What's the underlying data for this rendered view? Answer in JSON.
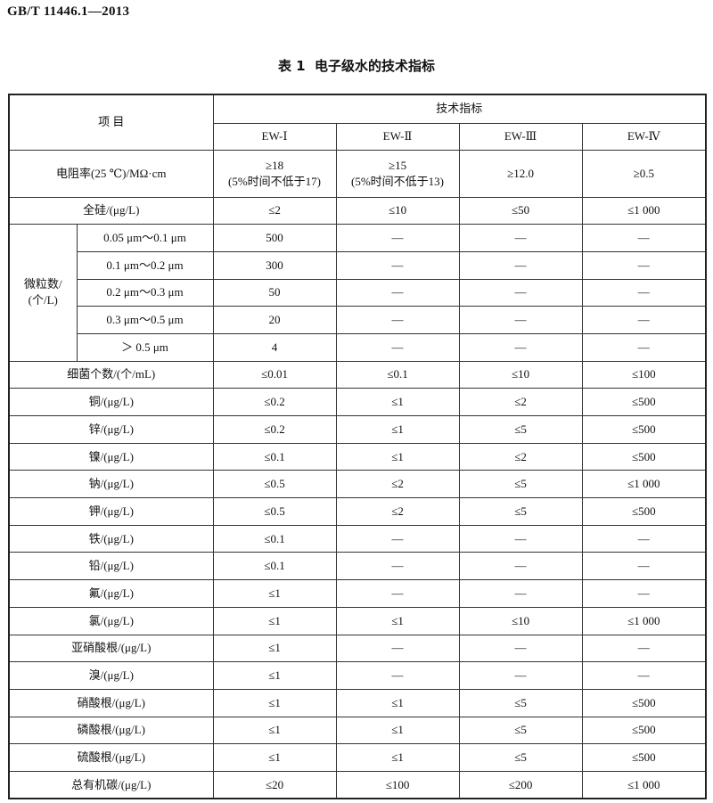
{
  "header": {
    "code": "GB/T 11446.1—2013"
  },
  "table": {
    "title": "表 1  电子级水的技术指标",
    "columns": {
      "item": "项 目",
      "group": "技术指标",
      "grades": [
        "EW-Ⅰ",
        "EW-Ⅱ",
        "EW-Ⅲ",
        "EW-Ⅳ"
      ]
    },
    "resistivity": {
      "item": "电阻率(25 ℃)/MΩ·cm",
      "values": [
        [
          "≥18",
          "(5%时间不低于17)"
        ],
        [
          "≥15",
          "(5%时间不低于13)"
        ],
        [
          "≥12.0"
        ],
        [
          "≥0.5"
        ]
      ]
    },
    "silicon": {
      "item": "全硅/(μg/L)",
      "values": [
        "≤2",
        "≤10",
        "≤50",
        "≤1 000"
      ]
    },
    "particles": {
      "group": [
        "微粒数/",
        "(个/L)"
      ],
      "rows": [
        {
          "item": "0.05 μm～0.1 μm",
          "values": [
            "500",
            "—",
            "—",
            "—"
          ]
        },
        {
          "item": "0.1 μm～0.2 μm",
          "values": [
            "300",
            "—",
            "—",
            "—"
          ]
        },
        {
          "item": "0.2 μm～0.3 μm",
          "values": [
            "50",
            "—",
            "—",
            "—"
          ]
        },
        {
          "item": "0.3 μm～0.5 μm",
          "values": [
            "20",
            "—",
            "—",
            "—"
          ]
        },
        {
          "item": "＞ 0.5 μm",
          "values": [
            "4",
            "—",
            "—",
            "—"
          ]
        }
      ]
    },
    "rows": [
      {
        "item": "细菌个数/(个/mL)",
        "values": [
          "≤0.01",
          "≤0.1",
          "≤10",
          "≤100"
        ]
      },
      {
        "item": "铜/(μg/L)",
        "values": [
          "≤0.2",
          "≤1",
          "≤2",
          "≤500"
        ]
      },
      {
        "item": "锌/(μg/L)",
        "values": [
          "≤0.2",
          "≤1",
          "≤5",
          "≤500"
        ]
      },
      {
        "item": "镍/(μg/L)",
        "values": [
          "≤0.1",
          "≤1",
          "≤2",
          "≤500"
        ]
      },
      {
        "item": "钠/(μg/L)",
        "values": [
          "≤0.5",
          "≤2",
          "≤5",
          "≤1 000"
        ]
      },
      {
        "item": "钾/(μg/L)",
        "values": [
          "≤0.5",
          "≤2",
          "≤5",
          "≤500"
        ]
      },
      {
        "item": "铁/(μg/L)",
        "values": [
          "≤0.1",
          "—",
          "—",
          "—"
        ]
      },
      {
        "item": "铅/(μg/L)",
        "values": [
          "≤0.1",
          "—",
          "—",
          "—"
        ]
      },
      {
        "item": "氟/(μg/L)",
        "values": [
          "≤1",
          "—",
          "—",
          "—"
        ]
      },
      {
        "item": "氯/(μg/L)",
        "values": [
          "≤1",
          "≤1",
          "≤10",
          "≤1 000"
        ]
      },
      {
        "item": "亚硝酸根/(μg/L)",
        "values": [
          "≤1",
          "—",
          "—",
          "—"
        ]
      },
      {
        "item": "溴/(μg/L)",
        "values": [
          "≤1",
          "—",
          "—",
          "—"
        ]
      },
      {
        "item": "硝酸根/(μg/L)",
        "values": [
          "≤1",
          "≤1",
          "≤5",
          "≤500"
        ]
      },
      {
        "item": "磷酸根/(μg/L)",
        "values": [
          "≤1",
          "≤1",
          "≤5",
          "≤500"
        ]
      },
      {
        "item": "硫酸根/(μg/L)",
        "values": [
          "≤1",
          "≤1",
          "≤5",
          "≤500"
        ]
      },
      {
        "item": "总有机碳/(μg/L)",
        "values": [
          "≤20",
          "≤100",
          "≤200",
          "≤1 000"
        ]
      }
    ]
  }
}
